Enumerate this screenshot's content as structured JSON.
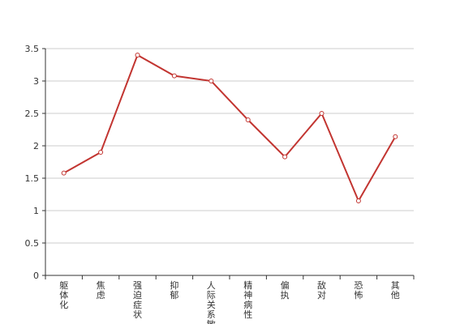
{
  "chart_data": {
    "type": "line",
    "categories": [
      "躯体化",
      "焦虑",
      "强迫症状",
      "抑郁",
      "人际关系敏感",
      "精神病性",
      "偏执",
      "敌对",
      "恐怖",
      "其他"
    ],
    "values": [
      1.58,
      1.9,
      3.4,
      3.08,
      3.0,
      2.4,
      1.83,
      2.5,
      1.15,
      2.14
    ],
    "color": "#c23531",
    "ylim": [
      0,
      3.5
    ],
    "yticks": [
      0,
      0.5,
      1,
      1.5,
      2,
      2.5,
      3,
      3.5
    ],
    "grid": true
  }
}
